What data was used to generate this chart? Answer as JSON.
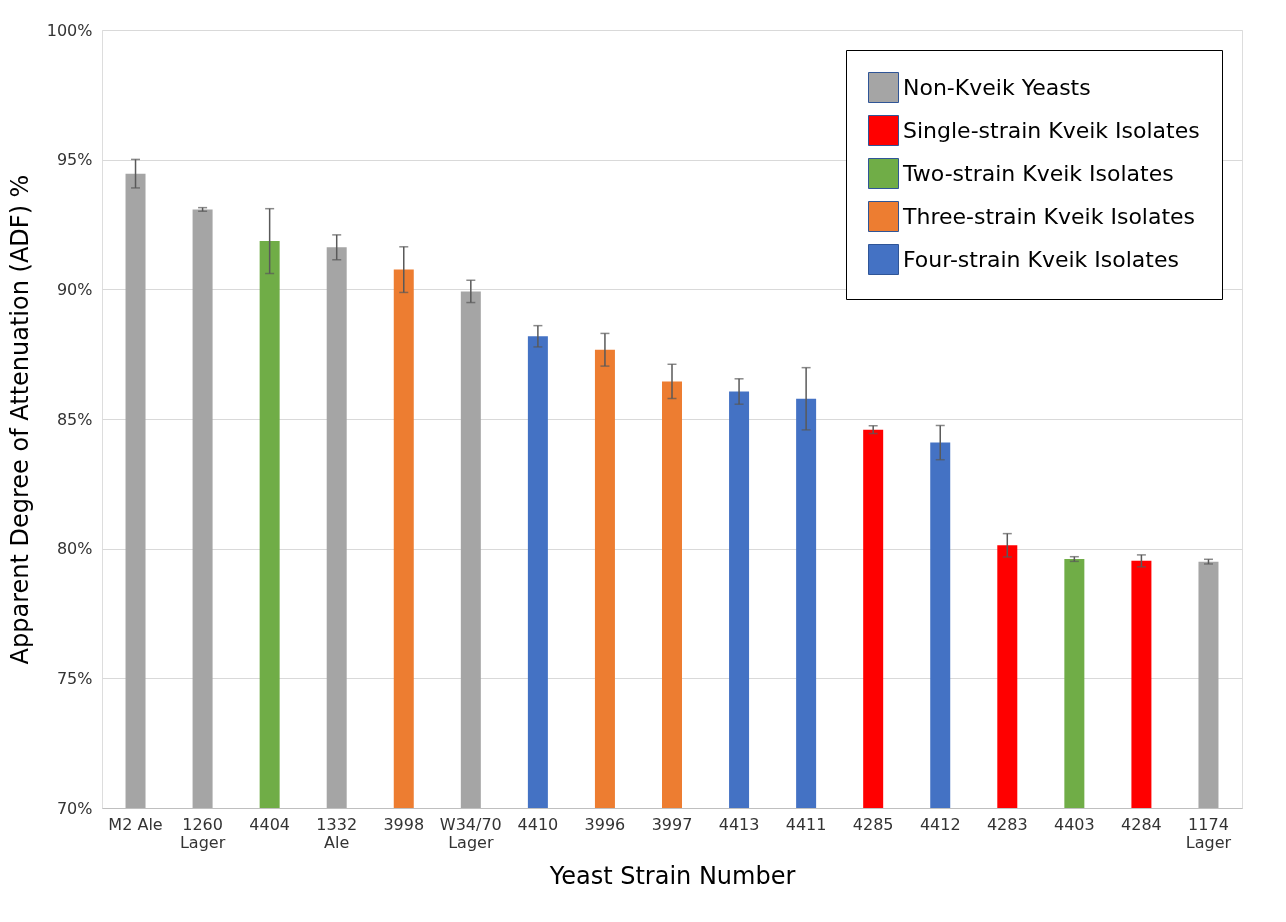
{
  "chart_data": {
    "type": "bar",
    "xlabel": "Yeast Strain Number",
    "ylabel": "Apparent Degree of Attenuation (ADF) %",
    "categories": [
      "M2 Ale",
      "1260\nLager",
      "4404",
      "1332\nAle",
      "3998",
      "W34/70\nLager",
      "4410",
      "3996",
      "3997",
      "4413",
      "4411",
      "4285",
      "4412",
      "4283",
      "4403",
      "4284",
      "1174\nLager"
    ],
    "series": [
      {
        "name": "Non-Kveik Yeasts",
        "color": "#a5a5a5",
        "values": [
          94.46,
          93.08,
          null,
          91.62,
          null,
          89.92,
          null,
          null,
          null,
          null,
          null,
          null,
          null,
          null,
          null,
          null,
          79.5
        ],
        "errors": [
          0.55,
          0.07,
          null,
          0.48,
          null,
          0.43,
          null,
          null,
          null,
          null,
          null,
          null,
          null,
          null,
          null,
          null,
          0.09
        ]
      },
      {
        "name": "Single-strain Kveik Isolates",
        "color": "#ff0000",
        "values": [
          null,
          null,
          null,
          null,
          null,
          null,
          null,
          null,
          null,
          null,
          null,
          84.59,
          null,
          80.13,
          null,
          79.53,
          null
        ],
        "errors": [
          null,
          null,
          null,
          null,
          null,
          null,
          null,
          null,
          null,
          null,
          null,
          0.15,
          null,
          0.45,
          null,
          0.23,
          null
        ]
      },
      {
        "name": "Two-strain Kveik Isolates",
        "color": "#70ad47",
        "values": [
          null,
          null,
          91.86,
          null,
          null,
          null,
          null,
          null,
          null,
          null,
          null,
          null,
          null,
          null,
          79.6,
          null,
          null
        ],
        "errors": [
          null,
          null,
          1.25,
          null,
          null,
          null,
          null,
          null,
          null,
          null,
          null,
          null,
          null,
          null,
          0.09,
          null,
          null
        ]
      },
      {
        "name": "Three-strain Kveik Isolates",
        "color": "#ed7d31",
        "values": [
          null,
          null,
          null,
          null,
          90.76,
          null,
          null,
          87.67,
          86.45,
          null,
          null,
          null,
          null,
          null,
          null,
          null,
          null
        ],
        "errors": [
          null,
          null,
          null,
          null,
          0.88,
          null,
          null,
          0.63,
          0.66,
          null,
          null,
          null,
          null,
          null,
          null,
          null,
          null
        ]
      },
      {
        "name": "Four-strain Kveik Isolates",
        "color": "#4472c4",
        "values": [
          null,
          null,
          null,
          null,
          null,
          null,
          88.19,
          null,
          null,
          86.06,
          85.78,
          null,
          84.09,
          null,
          null,
          null,
          null
        ],
        "errors": [
          null,
          null,
          null,
          null,
          null,
          null,
          0.41,
          null,
          null,
          0.49,
          1.2,
          null,
          0.66,
          null,
          null,
          null,
          null
        ]
      }
    ],
    "ylim": [
      70,
      100
    ],
    "yticks": [
      {
        "value": 70,
        "label": "70%"
      },
      {
        "value": 75,
        "label": "75%"
      },
      {
        "value": 80,
        "label": "80%"
      },
      {
        "value": 85,
        "label": "85%"
      },
      {
        "value": 90,
        "label": "90%"
      },
      {
        "value": 95,
        "label": "95%"
      },
      {
        "value": 100,
        "label": "100%"
      }
    ],
    "grid": "y",
    "legend": "top right"
  }
}
